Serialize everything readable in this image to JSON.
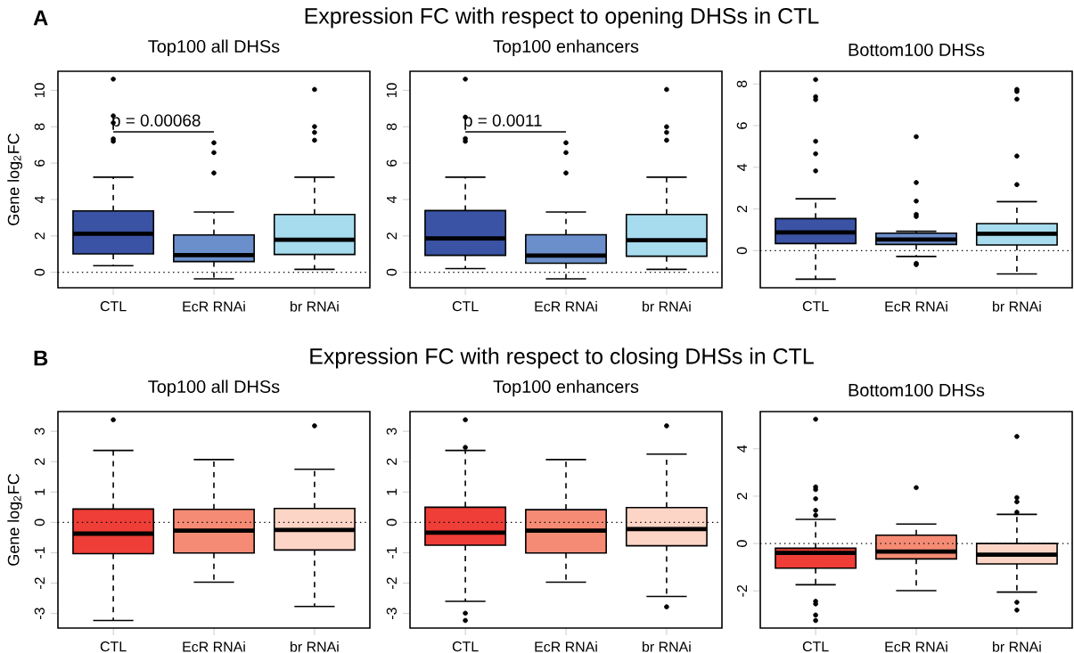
{
  "chart_data": [
    {
      "type": "box",
      "title": "Top100 all DHSs",
      "ylabel": "Gene log$_{2}$FC",
      "categories": [
        "CTL",
        "EcR RNAi",
        "br RNAi"
      ],
      "colors": [
        "#3a53a4",
        "#6b8fcb",
        "#a7dcee"
      ],
      "ylim": [
        -0.85,
        11.05
      ],
      "yticks": [
        0,
        2,
        4,
        6,
        8,
        10
      ],
      "boxes": [
        {
          "low": 0.36,
          "q1": 1.01,
          "median": 2.12,
          "q3": 3.37,
          "high": 5.23,
          "outliers": [
            10.62,
            8.6,
            8.22,
            7.33,
            7.2
          ]
        },
        {
          "low": -0.36,
          "q1": 0.59,
          "median": 0.94,
          "q3": 2.05,
          "high": 3.31,
          "outliers": [
            7.12,
            6.58,
            5.46
          ]
        },
        {
          "low": 0.16,
          "q1": 0.98,
          "median": 1.79,
          "q3": 3.18,
          "high": 5.23,
          "outliers": [
            10.05,
            8.01,
            7.69,
            7.26
          ]
        }
      ],
      "ref_lines": [
        {
          "axis": "y",
          "value": 0,
          "line_style": "dotted"
        }
      ],
      "annotations": [
        "A",
        "Expression FC with respect to opening DHSs in CTL",
        "p = 0.00068"
      ]
    },
    {
      "type": "box",
      "title": "Top100 enhancers",
      "categories": [
        "CTL",
        "EcR RNAi",
        "br RNAi"
      ],
      "colors": [
        "#3a53a4",
        "#6b8fcb",
        "#a7dcee"
      ],
      "ylim": [
        -0.85,
        11.05
      ],
      "yticks": [
        0,
        2,
        4,
        6,
        8,
        10
      ],
      "boxes": [
        {
          "low": 0.2,
          "q1": 0.93,
          "median": 1.86,
          "q3": 3.39,
          "high": 5.23,
          "outliers": [
            10.62,
            8.53,
            7.35,
            7.2
          ]
        },
        {
          "low": -0.36,
          "q1": 0.5,
          "median": 0.92,
          "q3": 2.06,
          "high": 3.31,
          "outliers": [
            7.12,
            6.58,
            5.46
          ]
        },
        {
          "low": 0.16,
          "q1": 0.88,
          "median": 1.76,
          "q3": 3.18,
          "high": 5.23,
          "outliers": [
            10.05,
            8.0,
            7.69,
            7.26
          ]
        }
      ],
      "ref_lines": [
        {
          "axis": "y",
          "value": 0,
          "line_style": "dotted"
        }
      ],
      "annotations": [
        "p = 0.0011"
      ]
    },
    {
      "type": "box",
      "title": "Bottom100 DHSs",
      "categories": [
        "CTL",
        "EcR RNAi",
        "br RNAi"
      ],
      "colors": [
        "#3a53a4",
        "#6b8fcb",
        "#a7dcee"
      ],
      "ylim": [
        -1.78,
        8.61
      ],
      "yticks": [
        0,
        2,
        4,
        6,
        8
      ],
      "boxes": [
        {
          "low": -1.37,
          "q1": 0.34,
          "median": 0.88,
          "q3": 1.54,
          "high": 2.49,
          "outliers": [
            8.21,
            7.39,
            7.25,
            5.25,
            4.65,
            3.83
          ]
        },
        {
          "low": -0.28,
          "q1": 0.3,
          "median": 0.53,
          "q3": 0.84,
          "high": 0.93,
          "outliers": [
            5.47,
            3.27,
            2.38,
            1.74,
            1.64,
            -0.61,
            -0.67
          ]
        },
        {
          "low": -1.12,
          "q1": 0.27,
          "median": 0.81,
          "q3": 1.3,
          "high": 2.35,
          "outliers": [
            7.74,
            7.64,
            7.27,
            4.54,
            3.17
          ]
        }
      ],
      "ref_lines": [
        {
          "axis": "y",
          "value": 0,
          "line_style": "dotted"
        }
      ]
    },
    {
      "type": "box",
      "title": "Top100 all DHSs",
      "ylabel": "Gene log$_{2}$FC",
      "categories": [
        "CTL",
        "EcR RNAi",
        "br RNAi"
      ],
      "colors": [
        "#ee3e37",
        "#f58b74",
        "#fcd5c6"
      ],
      "ylim": [
        -3.48,
        3.65
      ],
      "yticks": [
        -3,
        -2,
        -1,
        0,
        1,
        2,
        3
      ],
      "boxes": [
        {
          "low": -3.23,
          "q1": -1.03,
          "median": -0.37,
          "q3": 0.44,
          "high": 2.37,
          "outliers": [
            3.38
          ]
        },
        {
          "low": -1.97,
          "q1": -1.01,
          "median": -0.27,
          "q3": 0.43,
          "high": 2.07
        },
        {
          "low": -2.77,
          "q1": -0.91,
          "median": -0.25,
          "q3": 0.46,
          "high": 1.75,
          "outliers": [
            3.18
          ]
        }
      ],
      "ref_lines": [
        {
          "axis": "y",
          "value": 0,
          "line_style": "dotted"
        }
      ],
      "annotations": [
        "B",
        "Expression FC with respect to closing DHSs in CTL"
      ]
    },
    {
      "type": "box",
      "title": "Top100 enhancers",
      "categories": [
        "CTL",
        "EcR RNAi",
        "br RNAi"
      ],
      "colors": [
        "#ee3e37",
        "#f58b74",
        "#fcd5c6"
      ],
      "ylim": [
        -3.48,
        3.65
      ],
      "yticks": [
        -3,
        -2,
        -1,
        0,
        1,
        2,
        3
      ],
      "boxes": [
        {
          "low": -2.6,
          "q1": -0.75,
          "median": -0.34,
          "q3": 0.5,
          "high": 2.37,
          "outliers": [
            3.38,
            2.47,
            -2.99,
            -3.23
          ]
        },
        {
          "low": -1.97,
          "q1": -1.01,
          "median": -0.27,
          "q3": 0.42,
          "high": 2.07
        },
        {
          "low": -2.44,
          "q1": -0.77,
          "median": -0.22,
          "q3": 0.49,
          "high": 2.25,
          "outliers": [
            3.18,
            -2.78
          ]
        }
      ],
      "ref_lines": [
        {
          "axis": "y",
          "value": 0,
          "line_style": "dotted"
        }
      ]
    },
    {
      "type": "box",
      "title": "Bottom100 DHSs",
      "categories": [
        "CTL",
        "EcR RNAi",
        "br RNAi"
      ],
      "colors": [
        "#ee3e37",
        "#f58b74",
        "#fcd5c6"
      ],
      "ylim": [
        -3.57,
        5.57
      ],
      "yticks": [
        -2,
        0,
        2,
        4
      ],
      "boxes": [
        {
          "low": -1.74,
          "q1": -1.04,
          "median": -0.4,
          "q3": -0.2,
          "high": 1.02,
          "outliers": [
            5.25,
            2.39,
            2.28,
            1.89,
            1.4,
            1.19,
            -2.44,
            -2.55,
            -3.02,
            -3.25
          ]
        },
        {
          "low": -1.99,
          "q1": -0.65,
          "median": -0.34,
          "q3": 0.35,
          "high": 0.82,
          "outliers": [
            2.36
          ]
        },
        {
          "low": -2.05,
          "q1": -0.86,
          "median": -0.47,
          "q3": 0.0,
          "high": 1.23,
          "outliers": [
            4.52,
            1.94,
            1.76,
            1.32,
            -2.48,
            -2.81
          ]
        }
      ],
      "ref_lines": [
        {
          "axis": "y",
          "value": 0,
          "line_style": "dotted"
        }
      ]
    }
  ]
}
